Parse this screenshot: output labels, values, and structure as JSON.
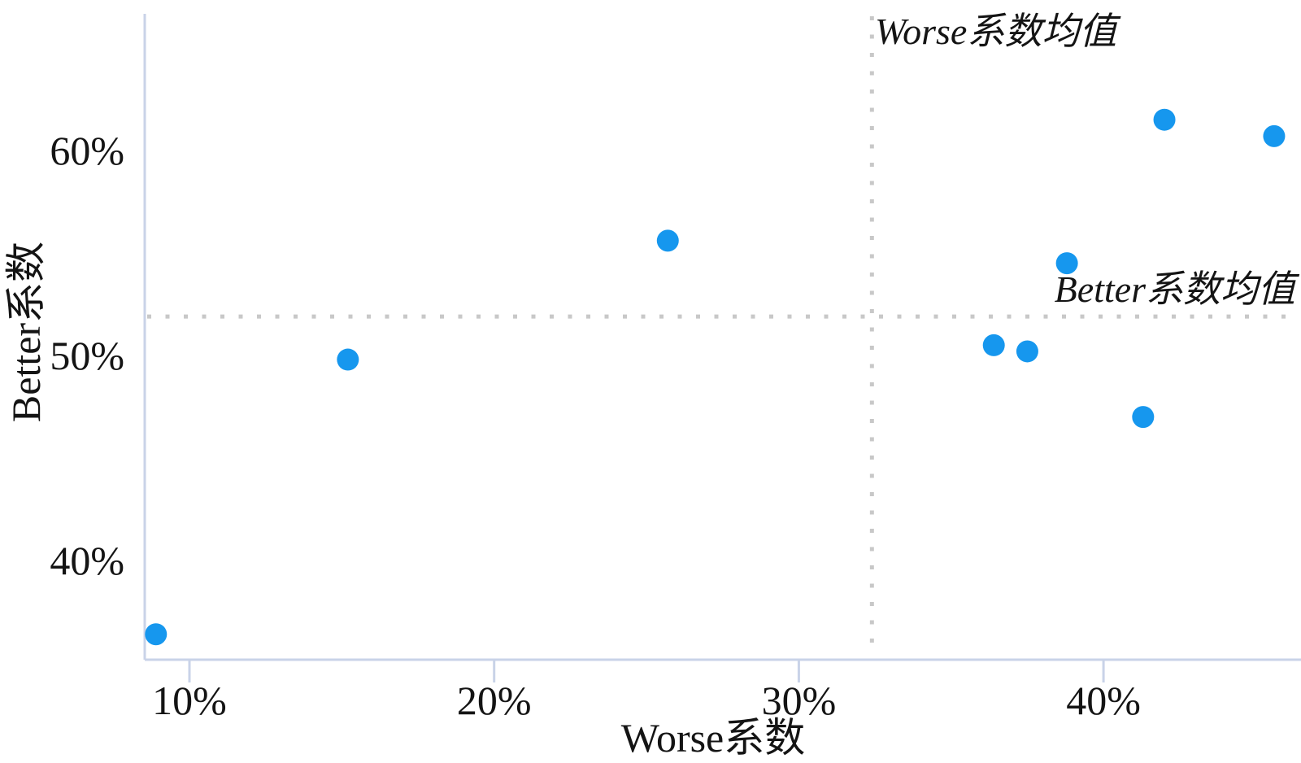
{
  "chart_data": {
    "type": "scatter",
    "title": "",
    "xlabel": "Worse系数",
    "ylabel": "Better系数",
    "x_ticks": [
      {
        "value": 10,
        "label": "10%"
      },
      {
        "value": 20,
        "label": "20%"
      },
      {
        "value": 30,
        "label": "30%"
      },
      {
        "value": 40,
        "label": "40%"
      }
    ],
    "y_ticks": [
      {
        "value": 40,
        "label": "40%"
      },
      {
        "value": 50,
        "label": "50%"
      },
      {
        "value": 60,
        "label": "60%"
      }
    ],
    "xlim": [
      8.5,
      46.5
    ],
    "ylim": [
      35.2,
      66.8
    ],
    "grid": false,
    "legend_position": "none",
    "points": [
      {
        "x": 8.9,
        "y": 36.4
      },
      {
        "x": 15.2,
        "y": 49.8
      },
      {
        "x": 25.7,
        "y": 55.6
      },
      {
        "x": 36.4,
        "y": 50.5
      },
      {
        "x": 37.5,
        "y": 50.2
      },
      {
        "x": 38.8,
        "y": 54.5
      },
      {
        "x": 41.3,
        "y": 47.0
      },
      {
        "x": 42.0,
        "y": 61.5
      },
      {
        "x": 45.6,
        "y": 60.7
      }
    ],
    "mean_lines": {
      "vertical": {
        "value": 32.4,
        "label": "Worse系数均值"
      },
      "horizontal": {
        "value": 51.9,
        "label": "Better系数均值"
      }
    },
    "colors": {
      "point": "#1697EE",
      "axis": "#c9d3e8",
      "mean_line": "#c8c8c8",
      "text": "#141414"
    }
  }
}
